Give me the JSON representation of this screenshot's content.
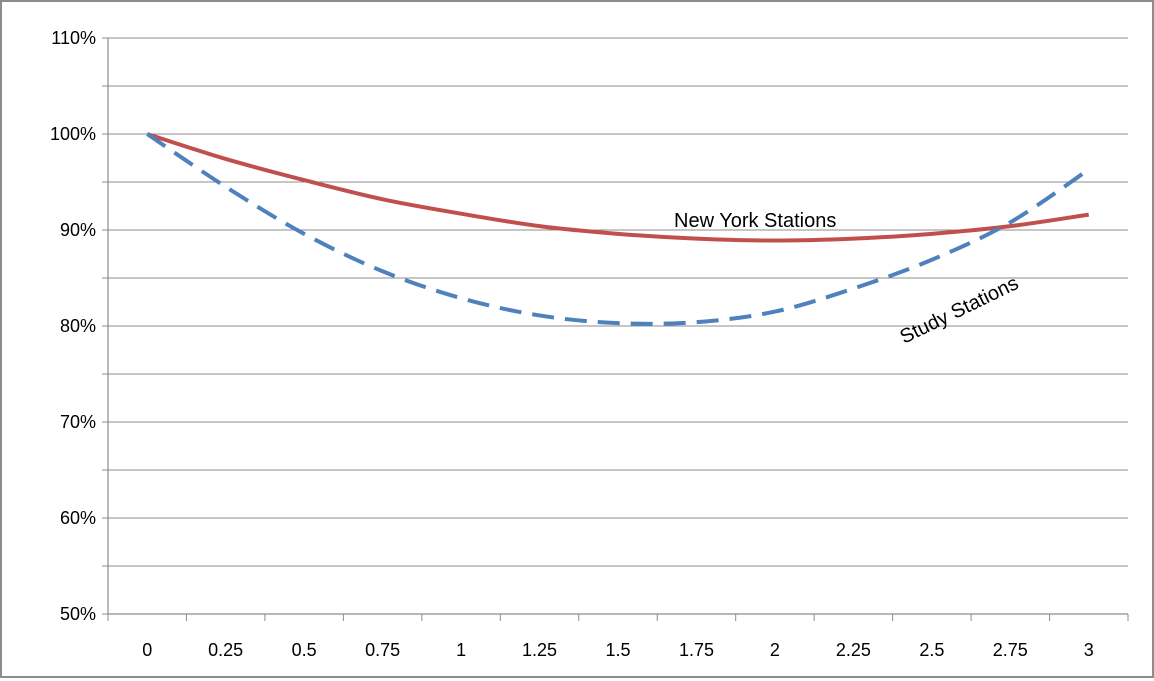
{
  "chart_data": {
    "type": "line",
    "title": "",
    "xlabel": "",
    "ylabel": "",
    "x": [
      0,
      0.25,
      0.5,
      0.75,
      1,
      1.25,
      1.5,
      1.75,
      2,
      2.25,
      2.5,
      2.75,
      3
    ],
    "x_tick_labels": [
      "0",
      "0.25",
      "0.5",
      "0.75",
      "1",
      "1.25",
      "1.5",
      "1.75",
      "2",
      "2.25",
      "2.5",
      "2.75",
      "3"
    ],
    "y_tick_labels": [
      "50%",
      "60%",
      "70%",
      "80%",
      "90%",
      "100%",
      "110%"
    ],
    "y_ticks": [
      50,
      60,
      70,
      80,
      90,
      100,
      110
    ],
    "ylim": [
      50,
      110
    ],
    "y_gridline_step": 5,
    "grid": true,
    "legend": "none",
    "series": [
      {
        "name": "New York Stations",
        "color": "#c0504d",
        "style": "solid",
        "values": [
          100,
          97.4,
          95.2,
          93.2,
          91.7,
          90.4,
          89.6,
          89.1,
          88.9,
          89.1,
          89.6,
          90.4,
          91.6
        ]
      },
      {
        "name": "Study Stations",
        "color": "#4f81bd",
        "style": "dashed",
        "values": [
          100,
          94.5,
          89.6,
          85.7,
          82.9,
          81.1,
          80.3,
          80.4,
          81.5,
          83.9,
          86.9,
          90.8,
          96.3
        ]
      }
    ],
    "annotations": [
      {
        "text": "New York Stations",
        "series": "New York Stations"
      },
      {
        "text": "Study Stations",
        "series": "Study Stations"
      }
    ]
  }
}
